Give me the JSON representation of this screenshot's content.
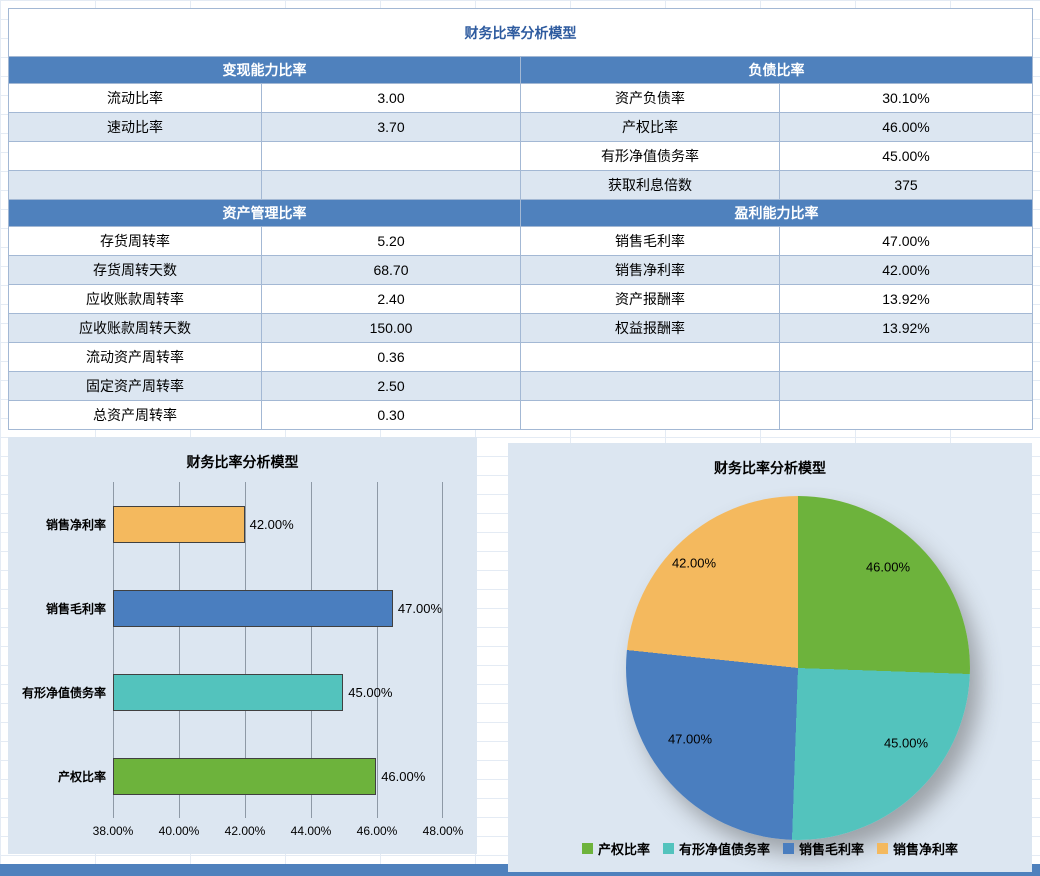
{
  "colors": {
    "header_blue": "#4f81bd",
    "alt_row": "#dce6f1",
    "panel_background": "#dce6f1",
    "title_text": "#2e5b9f"
  },
  "table": {
    "title": "财务比率分析模型",
    "sections": [
      {
        "left_header": "变现能力比率",
        "right_header": "负债比率",
        "rows": [
          {
            "ll": "流动比率",
            "lv": "3.00",
            "rl": "资产负债率",
            "rv": "30.10%"
          },
          {
            "ll": "速动比率",
            "lv": "3.70",
            "rl": "产权比率",
            "rv": "46.00%"
          },
          {
            "ll": "",
            "lv": "",
            "rl": "有形净值债务率",
            "rv": "45.00%"
          },
          {
            "ll": "",
            "lv": "",
            "rl": "获取利息倍数",
            "rv": "375"
          }
        ]
      },
      {
        "left_header": "资产管理比率",
        "right_header": "盈利能力比率",
        "rows": [
          {
            "ll": "存货周转率",
            "lv": "5.20",
            "rl": "销售毛利率",
            "rv": "47.00%"
          },
          {
            "ll": "存货周转天数",
            "lv": "68.70",
            "rl": "销售净利率",
            "rv": "42.00%"
          },
          {
            "ll": "应收账款周转率",
            "lv": "2.40",
            "rl": "资产报酬率",
            "rv": "13.92%"
          },
          {
            "ll": "应收账款周转天数",
            "lv": "150.00",
            "rl": "权益报酬率",
            "rv": "13.92%"
          },
          {
            "ll": "流动资产周转率",
            "lv": "0.36",
            "rl": "",
            "rv": ""
          },
          {
            "ll": "固定资产周转率",
            "lv": "2.50",
            "rl": "",
            "rv": ""
          },
          {
            "ll": "总资产周转率",
            "lv": "0.30",
            "rl": "",
            "rv": ""
          }
        ]
      }
    ]
  },
  "chart_data": [
    {
      "type": "bar",
      "orientation": "horizontal",
      "title": "财务比率分析模型",
      "categories": [
        "产权比率",
        "有形净值债务率",
        "销售毛利率",
        "销售净利率"
      ],
      "values": [
        46,
        45,
        47,
        42
      ],
      "value_labels": [
        "46.00%",
        "45.00%",
        "47.00%",
        "42.00%"
      ],
      "colors": [
        "#6db33c",
        "#53c3bd",
        "#4a7ebf",
        "#f4b95e"
      ],
      "xlim": [
        38,
        48
      ],
      "x_ticks": [
        "38.00%",
        "40.00%",
        "42.00%",
        "44.00%",
        "46.00%",
        "48.00%"
      ],
      "xlabel": "",
      "ylabel": "",
      "grid": true,
      "legend": false
    },
    {
      "type": "pie",
      "title": "财务比率分析模型",
      "labels": [
        "产权比率",
        "有形净值债务率",
        "销售毛利率",
        "销售净利率"
      ],
      "values": [
        46,
        45,
        47,
        42
      ],
      "slice_labels": [
        "46.00%",
        "45.00%",
        "47.00%",
        "42.00%"
      ],
      "colors": [
        "#6db33c",
        "#53c3bd",
        "#4a7ebf",
        "#f4b95e"
      ],
      "start_angle_deg": 0,
      "direction": "clockwise",
      "legend_position": "bottom"
    }
  ]
}
